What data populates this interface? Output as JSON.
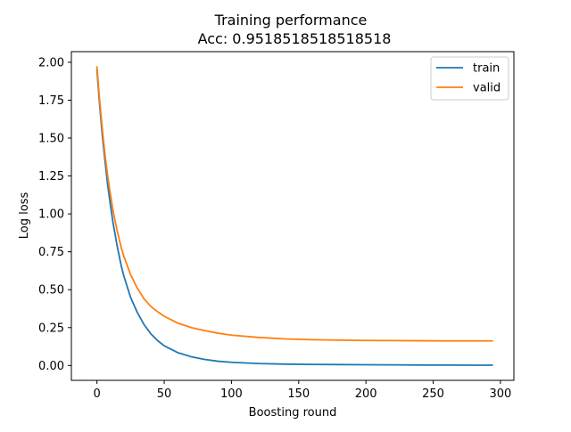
{
  "chart_data": {
    "type": "line",
    "title": "Training performance",
    "subtitle": "Acc: 0.9518518518518518",
    "xlabel": "Boosting round",
    "ylabel": "Log loss",
    "xlim": [
      -19,
      310
    ],
    "ylim": [
      -0.098,
      2.07
    ],
    "xticks": [
      {
        "value": 0,
        "label": "0"
      },
      {
        "value": 50,
        "label": "50"
      },
      {
        "value": 100,
        "label": "100"
      },
      {
        "value": 150,
        "label": "150"
      },
      {
        "value": 200,
        "label": "200"
      },
      {
        "value": 250,
        "label": "250"
      },
      {
        "value": 300,
        "label": "300"
      }
    ],
    "yticks": [
      {
        "value": 0.0,
        "label": "0.00"
      },
      {
        "value": 0.25,
        "label": "0.25"
      },
      {
        "value": 0.5,
        "label": "0.50"
      },
      {
        "value": 0.75,
        "label": "0.75"
      },
      {
        "value": 1.0,
        "label": "1.00"
      },
      {
        "value": 1.25,
        "label": "1.25"
      },
      {
        "value": 1.5,
        "label": "1.50"
      },
      {
        "value": 1.75,
        "label": "1.75"
      },
      {
        "value": 2.0,
        "label": "2.00"
      }
    ],
    "grid": false,
    "legend_position": "top-right",
    "series": [
      {
        "name": "train",
        "color": "#1f77b4",
        "x": [
          0,
          2,
          4,
          6,
          8,
          10,
          12,
          15,
          18,
          20,
          25,
          30,
          35,
          40,
          45,
          50,
          60,
          70,
          80,
          90,
          100,
          120,
          140,
          160,
          180,
          200,
          220,
          240,
          260,
          280,
          294
        ],
        "y": [
          1.95,
          1.72,
          1.52,
          1.35,
          1.19,
          1.06,
          0.94,
          0.79,
          0.66,
          0.59,
          0.45,
          0.35,
          0.27,
          0.21,
          0.165,
          0.13,
          0.085,
          0.058,
          0.04,
          0.028,
          0.021,
          0.013,
          0.009,
          0.007,
          0.006,
          0.005,
          0.004,
          0.003,
          0.003,
          0.002,
          0.002
        ]
      },
      {
        "name": "valid",
        "color": "#ff7f0e",
        "x": [
          0,
          2,
          4,
          6,
          8,
          10,
          12,
          15,
          18,
          20,
          25,
          30,
          35,
          40,
          45,
          50,
          60,
          70,
          80,
          90,
          100,
          120,
          140,
          160,
          180,
          200,
          220,
          240,
          260,
          280,
          294
        ],
        "y": [
          1.97,
          1.75,
          1.56,
          1.39,
          1.25,
          1.13,
          1.02,
          0.89,
          0.78,
          0.72,
          0.6,
          0.51,
          0.44,
          0.39,
          0.355,
          0.325,
          0.28,
          0.25,
          0.23,
          0.213,
          0.2,
          0.185,
          0.175,
          0.17,
          0.167,
          0.165,
          0.164,
          0.163,
          0.162,
          0.162,
          0.162
        ]
      }
    ]
  }
}
